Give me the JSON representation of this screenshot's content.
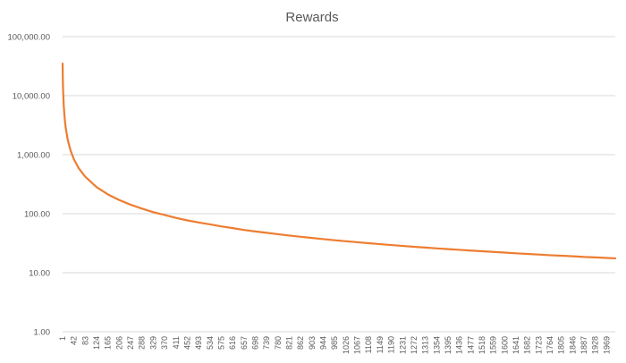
{
  "chart_data": {
    "type": "line",
    "title": "Rewards",
    "xlabel": "",
    "ylabel": "",
    "yscale": "log",
    "ylim": [
      1,
      100000
    ],
    "xlim": [
      1,
      2000
    ],
    "grid": true,
    "legend": "none",
    "y_tick_labels": [
      "1.00",
      "10.00",
      "100.00",
      "1,000.00",
      "10,000.00",
      "100,000.00"
    ],
    "x_tick_labels": [
      "1",
      "42",
      "83",
      "124",
      "165",
      "206",
      "247",
      "288",
      "329",
      "370",
      "411",
      "452",
      "493",
      "534",
      "575",
      "616",
      "657",
      "698",
      "739",
      "780",
      "821",
      "862",
      "903",
      "944",
      "985",
      "1026",
      "1067",
      "1108",
      "1149",
      "1190",
      "1231",
      "1272",
      "1313",
      "1354",
      "1395",
      "1436",
      "1477",
      "1518",
      "1559",
      "1600",
      "1641",
      "1682",
      "1723",
      "1764",
      "1805",
      "1846",
      "1887",
      "1928",
      "1969"
    ],
    "series": [
      {
        "color": "#ed7d31",
        "x": [
          1,
          2,
          3,
          5,
          8,
          12,
          20,
          30,
          42,
          60,
          83,
          124,
          165,
          206,
          247,
          288,
          329,
          370,
          411,
          452,
          493,
          534,
          575,
          616,
          657,
          698,
          739,
          780,
          821,
          862,
          903,
          944,
          985,
          1026,
          1067,
          1108,
          1149,
          1190,
          1231,
          1272,
          1313,
          1354,
          1395,
          1436,
          1477,
          1518,
          1559,
          1600,
          1641,
          1682,
          1723,
          1764,
          1805,
          1846,
          1887,
          1928,
          1969,
          2000
        ],
        "y": [
          35000,
          17500,
          11700,
          7000,
          4400,
          2900,
          1750,
          1170,
          833,
          583,
          422,
          282,
          212,
          170,
          142,
          122,
          106,
          95,
          85,
          77,
          71,
          66,
          61,
          57,
          53,
          50,
          47.4,
          44.9,
          42.6,
          40.6,
          38.8,
          37.1,
          35.5,
          34.1,
          32.8,
          31.6,
          30.5,
          29.4,
          28.4,
          27.5,
          26.7,
          25.8,
          25.1,
          24.4,
          23.7,
          23.1,
          22.5,
          21.9,
          21.3,
          20.8,
          20.3,
          19.8,
          19.4,
          19.0,
          18.5,
          18.2,
          17.8,
          17.5
        ]
      }
    ]
  }
}
